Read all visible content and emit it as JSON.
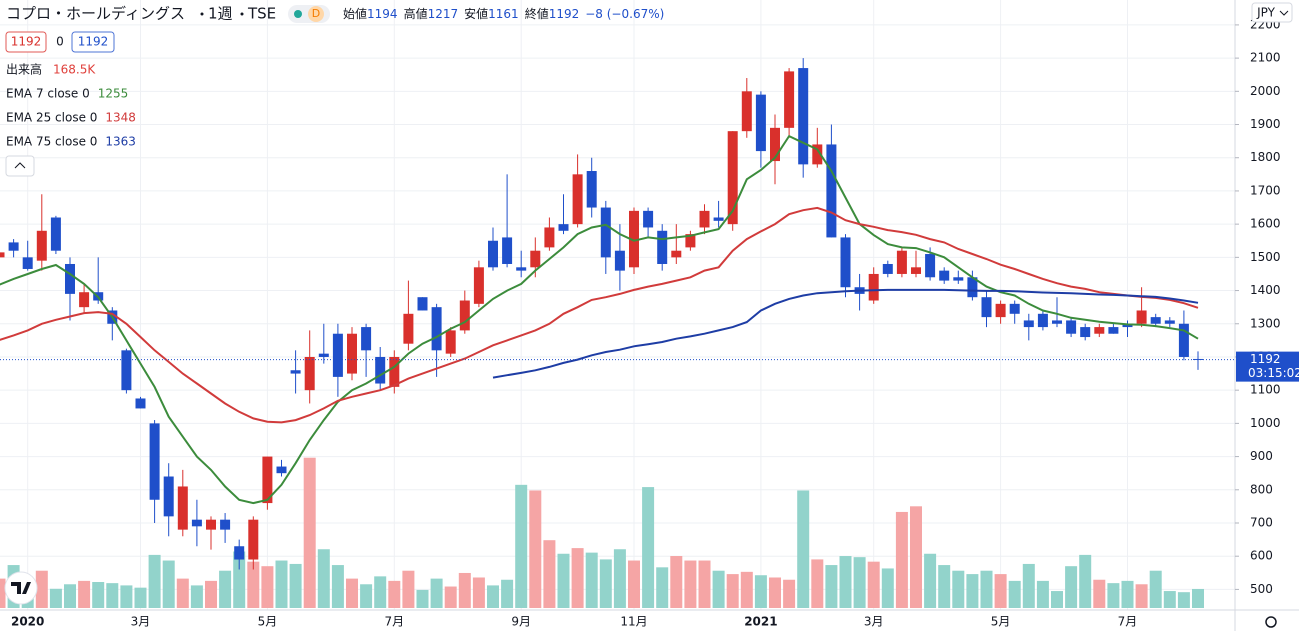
{
  "header": {
    "symbol": "コプロ・ホールディングス",
    "interval": "1週",
    "exchange": "TSE",
    "badge": "D",
    "stats": [
      {
        "label": "始値",
        "value": 1194
      },
      {
        "label": "高値",
        "value": 1217
      },
      {
        "label": "安値",
        "value": 1161
      },
      {
        "label": "終値",
        "value": 1192
      }
    ],
    "change": "−8 (−0.67%)",
    "price_boxes": [
      1192,
      0,
      1192
    ],
    "currency": "JPY"
  },
  "chart_data": {
    "type": "candlestick",
    "categories": [
      null,
      null,
      "2020",
      null,
      null,
      null,
      null,
      null,
      null,
      null,
      "3月",
      null,
      null,
      null,
      null,
      null,
      null,
      null,
      null,
      "5月",
      null,
      null,
      null,
      null,
      null,
      null,
      null,
      null,
      "7月",
      null,
      null,
      null,
      null,
      null,
      null,
      null,
      null,
      "9月",
      null,
      null,
      null,
      null,
      null,
      null,
      null,
      "11月",
      null,
      null,
      null,
      null,
      null,
      null,
      null,
      null,
      "2021",
      null,
      null,
      null,
      null,
      null,
      null,
      null,
      "3月",
      null,
      null,
      null,
      null,
      null,
      null,
      null,
      null,
      "5月",
      null,
      null,
      null,
      null,
      null,
      null,
      null,
      null,
      "7月",
      null,
      null,
      null,
      null,
      null
    ],
    "up_color": "#d9302c",
    "down_color": "#1f4fca",
    "up_volume_color": "#f5a5a5",
    "down_volume_color": "#92d3cb",
    "ohlc": [
      [
        1500,
        1530,
        1480,
        1515
      ],
      [
        1545,
        1555,
        1500,
        1520
      ],
      [
        1500,
        1550,
        1460,
        1465
      ],
      [
        1490,
        1690,
        1460,
        1580
      ],
      [
        1620,
        1625,
        1510,
        1520
      ],
      [
        1480,
        1500,
        1310,
        1390
      ],
      [
        1350,
        1420,
        1330,
        1395
      ],
      [
        1395,
        1500,
        1360,
        1370
      ],
      [
        1340,
        1350,
        1250,
        1300
      ],
      [
        1220,
        1225,
        1090,
        1100
      ],
      [
        1075,
        1080,
        1045,
        1045
      ],
      [
        1000,
        1010,
        700,
        770
      ],
      [
        840,
        880,
        660,
        720
      ],
      [
        680,
        860,
        660,
        810
      ],
      [
        710,
        770,
        630,
        690
      ],
      [
        680,
        720,
        620,
        710
      ],
      [
        710,
        730,
        640,
        680
      ],
      [
        630,
        650,
        560,
        590
      ],
      [
        590,
        720,
        560,
        710
      ],
      [
        760,
        900,
        740,
        900
      ],
      [
        870,
        890,
        840,
        850
      ],
      [
        1160,
        1220,
        1090,
        1150
      ],
      [
        1100,
        1280,
        1060,
        1200
      ],
      [
        1210,
        1300,
        1180,
        1200
      ],
      [
        1270,
        1300,
        1080,
        1140
      ],
      [
        1150,
        1290,
        1130,
        1270
      ],
      [
        1290,
        1300,
        1140,
        1220
      ],
      [
        1200,
        1230,
        1100,
        1120
      ],
      [
        1110,
        1220,
        1090,
        1200
      ],
      [
        1240,
        1430,
        1220,
        1330
      ],
      [
        1380,
        1380,
        1340,
        1340
      ],
      [
        1350,
        1360,
        1140,
        1220
      ],
      [
        1210,
        1290,
        1200,
        1280
      ],
      [
        1280,
        1400,
        1270,
        1370
      ],
      [
        1360,
        1490,
        1350,
        1470
      ],
      [
        1550,
        1590,
        1460,
        1470
      ],
      [
        1560,
        1750,
        1470,
        1480
      ],
      [
        1470,
        1520,
        1440,
        1460
      ],
      [
        1470,
        1560,
        1440,
        1520
      ],
      [
        1530,
        1620,
        1520,
        1590
      ],
      [
        1600,
        1690,
        1570,
        1580
      ],
      [
        1600,
        1810,
        1590,
        1750
      ],
      [
        1760,
        1800,
        1620,
        1650
      ],
      [
        1650,
        1670,
        1450,
        1500
      ],
      [
        1520,
        1600,
        1400,
        1460
      ],
      [
        1470,
        1650,
        1450,
        1640
      ],
      [
        1640,
        1650,
        1560,
        1590
      ],
      [
        1580,
        1600,
        1460,
        1480
      ],
      [
        1500,
        1600,
        1480,
        1520
      ],
      [
        1530,
        1580,
        1520,
        1570
      ],
      [
        1590,
        1660,
        1570,
        1640
      ],
      [
        1620,
        1670,
        1590,
        1610
      ],
      [
        1600,
        1880,
        1580,
        1880
      ],
      [
        1880,
        2040,
        1860,
        2000
      ],
      [
        1990,
        2000,
        1770,
        1820
      ],
      [
        1790,
        1930,
        1720,
        1890
      ],
      [
        1890,
        2070,
        1860,
        2060
      ],
      [
        2070,
        2100,
        1740,
        1780
      ],
      [
        1780,
        1890,
        1770,
        1840
      ],
      [
        1840,
        1900,
        1560,
        1560
      ],
      [
        1560,
        1570,
        1380,
        1410
      ],
      [
        1410,
        1450,
        1340,
        1390
      ],
      [
        1370,
        1470,
        1360,
        1450
      ],
      [
        1480,
        1490,
        1440,
        1450
      ],
      [
        1450,
        1530,
        1440,
        1520
      ],
      [
        1450,
        1520,
        1440,
        1470
      ],
      [
        1510,
        1530,
        1430,
        1440
      ],
      [
        1460,
        1470,
        1420,
        1430
      ],
      [
        1440,
        1460,
        1420,
        1430
      ],
      [
        1440,
        1460,
        1370,
        1380
      ],
      [
        1380,
        1400,
        1290,
        1320
      ],
      [
        1320,
        1370,
        1300,
        1360
      ],
      [
        1360,
        1370,
        1300,
        1330
      ],
      [
        1310,
        1330,
        1250,
        1290
      ],
      [
        1330,
        1340,
        1280,
        1290
      ],
      [
        1310,
        1380,
        1290,
        1300
      ],
      [
        1310,
        1320,
        1260,
        1270
      ],
      [
        1290,
        1300,
        1250,
        1260
      ],
      [
        1270,
        1300,
        1260,
        1290
      ],
      [
        1290,
        1300,
        1270,
        1270
      ],
      [
        1300,
        1310,
        1260,
        1290
      ],
      [
        1300,
        1410,
        1290,
        1340
      ],
      [
        1320,
        1330,
        1290,
        1300
      ],
      [
        1310,
        1320,
        1290,
        1300
      ],
      [
        1300,
        1340,
        1190,
        1200
      ],
      [
        1194,
        1217,
        1161,
        1192
      ]
    ],
    "volume": {
      "name": "出来高",
      "last_label": "168.5K",
      "color": "#e0413c",
      "values": [
        260,
        380,
        200,
        330,
        170,
        210,
        240,
        230,
        220,
        200,
        180,
        470,
        420,
        260,
        200,
        240,
        330,
        500,
        410,
        370,
        420,
        390,
        1330,
        520,
        380,
        260,
        210,
        280,
        240,
        330,
        160,
        260,
        190,
        310,
        270,
        200,
        250,
        1090,
        1040,
        600,
        480,
        530,
        490,
        430,
        520,
        420,
        1070,
        360,
        460,
        420,
        420,
        330,
        300,
        320,
        290,
        270,
        250,
        1040,
        430,
        380,
        460,
        450,
        410,
        350,
        850,
        900,
        480,
        380,
        330,
        300,
        330,
        300,
        240,
        390,
        240,
        150,
        370,
        470,
        250,
        220,
        240,
        210,
        330,
        150,
        140,
        168.5
      ]
    },
    "series": [
      {
        "name": "EMA 7 close 0",
        "color": "#3c8c3c",
        "values": [
          1418,
          1435,
          1450,
          1465,
          1477,
          1450,
          1420,
          1380,
          1320,
          1250,
          1180,
          1110,
          1020,
          960,
          900,
          860,
          810,
          770,
          760,
          770,
          815,
          880,
          950,
          1010,
          1065,
          1100,
          1120,
          1145,
          1170,
          1210,
          1240,
          1260,
          1285,
          1305,
          1340,
          1375,
          1400,
          1420,
          1460,
          1495,
          1530,
          1570,
          1590,
          1598,
          1570,
          1550,
          1560,
          1555,
          1560,
          1565,
          1575,
          1585,
          1640,
          1735,
          1763,
          1800,
          1865,
          1845,
          1825,
          1760,
          1680,
          1600,
          1567,
          1540,
          1530,
          1528,
          1515,
          1500,
          1470,
          1440,
          1412,
          1395,
          1385,
          1360,
          1340,
          1330,
          1318,
          1312,
          1306,
          1302,
          1298,
          1297,
          1293,
          1287,
          1280,
          1255
        ]
      },
      {
        "name": "EMA 25 close 0",
        "color": "#d13b3b",
        "values": [
          1251,
          1265,
          1280,
          1300,
          1312,
          1322,
          1332,
          1335,
          1330,
          1300,
          1260,
          1220,
          1185,
          1150,
          1120,
          1090,
          1060,
          1035,
          1015,
          1005,
          1003,
          1010,
          1025,
          1045,
          1068,
          1080,
          1090,
          1100,
          1115,
          1135,
          1150,
          1165,
          1180,
          1195,
          1215,
          1235,
          1250,
          1265,
          1280,
          1300,
          1330,
          1350,
          1372,
          1380,
          1390,
          1402,
          1412,
          1420,
          1430,
          1440,
          1460,
          1470,
          1520,
          1555,
          1578,
          1600,
          1630,
          1642,
          1649,
          1635,
          1612,
          1600,
          1592,
          1582,
          1576,
          1568,
          1555,
          1545,
          1525,
          1510,
          1495,
          1478,
          1465,
          1450,
          1435,
          1422,
          1412,
          1405,
          1395,
          1390,
          1385,
          1381,
          1378,
          1372,
          1362,
          1348
        ]
      },
      {
        "name": "EMA 75 close 0",
        "color": "#1e3da5",
        "values": [
          null,
          null,
          null,
          null,
          null,
          null,
          null,
          null,
          null,
          null,
          null,
          null,
          null,
          null,
          null,
          null,
          null,
          null,
          null,
          null,
          null,
          null,
          null,
          null,
          null,
          null,
          null,
          null,
          null,
          null,
          null,
          null,
          null,
          null,
          null,
          1138,
          1145,
          1152,
          1160,
          1170,
          1182,
          1192,
          1205,
          1215,
          1222,
          1232,
          1238,
          1245,
          1255,
          1262,
          1270,
          1280,
          1290,
          1305,
          1340,
          1360,
          1375,
          1385,
          1392,
          1395,
          1398,
          1400,
          1401,
          1402,
          1402,
          1402,
          1402,
          1402,
          1401,
          1400,
          1399,
          1399,
          1398,
          1396,
          1394,
          1393,
          1392,
          1390,
          1388,
          1387,
          1385,
          1383,
          1381,
          1376,
          1370,
          1363
        ]
      }
    ],
    "last_price": {
      "value": 1192,
      "countdown": "03:15:02"
    },
    "ylim": [
      438,
      2275
    ],
    "yticks": [
      500,
      600,
      700,
      800,
      900,
      1000,
      1100,
      1200,
      1300,
      1400,
      1500,
      1600,
      1700,
      1800,
      1900,
      2000,
      2100,
      2200
    ],
    "grid": true
  }
}
